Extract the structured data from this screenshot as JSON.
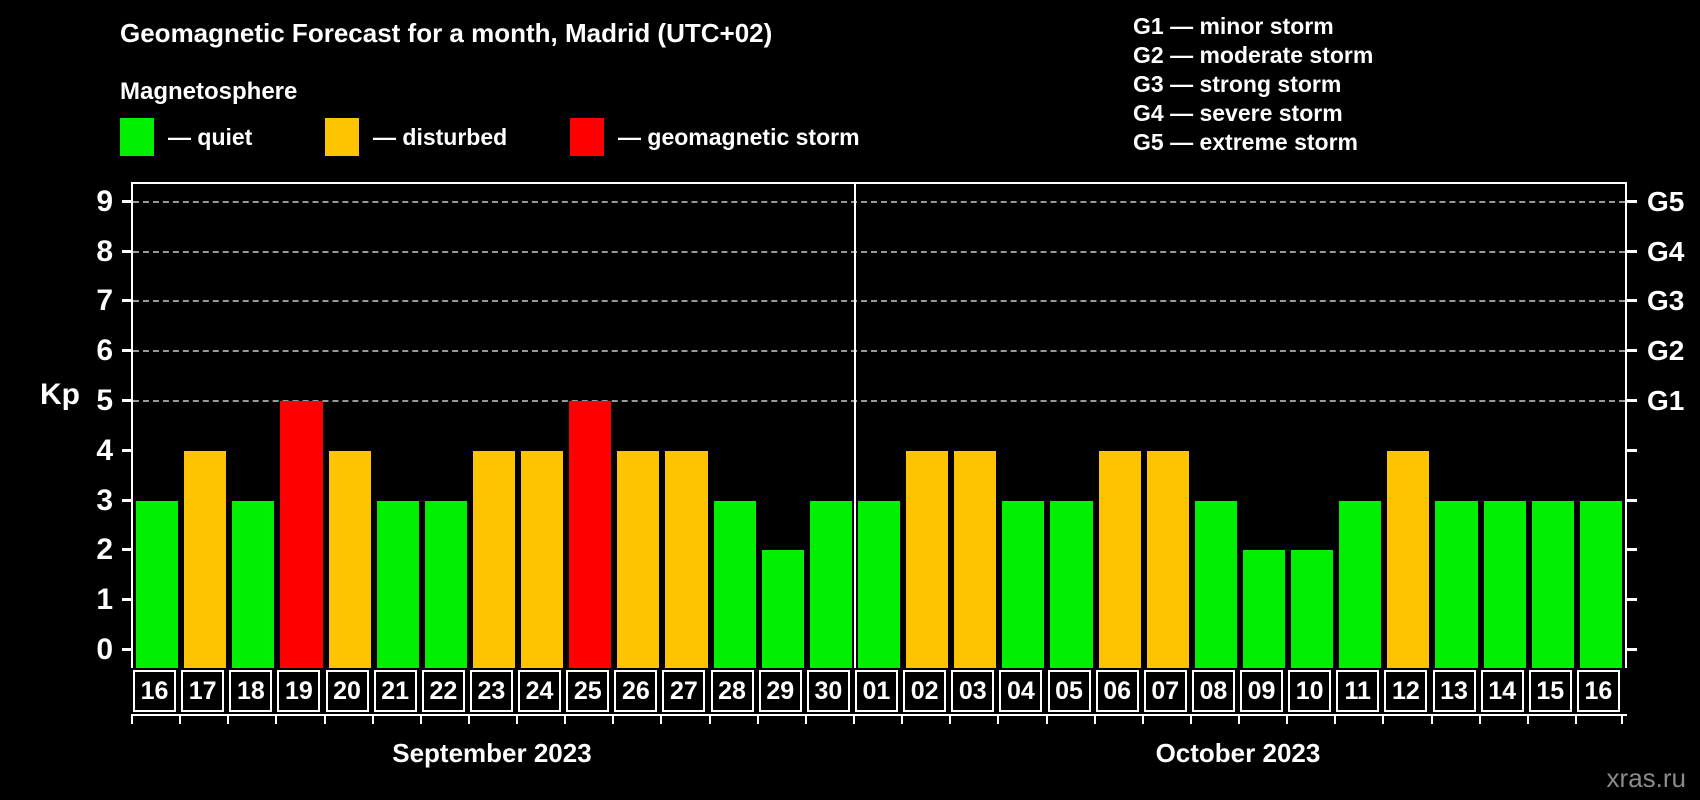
{
  "header": {
    "title": "Geomagnetic Forecast for a month, Madrid (UTC+02)",
    "subtitle": "Magnetosphere"
  },
  "legend": {
    "items": [
      {
        "key": "quiet",
        "label": "— quiet",
        "color": "#00ee00"
      },
      {
        "key": "disturbed",
        "label": "— disturbed",
        "color": "#ffc400"
      },
      {
        "key": "storm",
        "label": "— geomagnetic storm",
        "color": "#ff0000"
      }
    ]
  },
  "g_legend": {
    "items": [
      {
        "label": "G1 — minor storm"
      },
      {
        "label": "G2 — moderate storm"
      },
      {
        "label": "G3 — strong storm"
      },
      {
        "label": "G4 — severe storm"
      },
      {
        "label": "G5 — extreme storm"
      }
    ]
  },
  "watermark": {
    "text": "xras.ru"
  },
  "chart_data": {
    "type": "bar",
    "title": "Geomagnetic Forecast for a month, Madrid (UTC+02)",
    "ylabel": "Kp",
    "ylim": [
      0,
      9
    ],
    "yticks": [
      0,
      1,
      2,
      3,
      4,
      5,
      6,
      7,
      8,
      9
    ],
    "gridlines_at": [
      5,
      6,
      7,
      8,
      9
    ],
    "grid": "dashed horizontal at Kp 5-9 only",
    "legend_position": "top",
    "right_axis": [
      {
        "value": 5,
        "label": "G1"
      },
      {
        "value": 6,
        "label": "G2"
      },
      {
        "value": 7,
        "label": "G3"
      },
      {
        "value": 8,
        "label": "G4"
      },
      {
        "value": 9,
        "label": "G5"
      }
    ],
    "months": [
      {
        "label": "September 2023",
        "days": 15
      },
      {
        "label": "October 2023",
        "days": 16
      }
    ],
    "categories": [
      "16",
      "17",
      "18",
      "19",
      "20",
      "21",
      "22",
      "23",
      "24",
      "25",
      "26",
      "27",
      "28",
      "29",
      "30",
      "01",
      "02",
      "03",
      "04",
      "05",
      "06",
      "07",
      "08",
      "09",
      "10",
      "11",
      "12",
      "13",
      "14",
      "15",
      "16"
    ],
    "values": [
      3,
      4,
      3,
      5,
      4,
      3,
      3,
      4,
      4,
      5,
      4,
      4,
      3,
      2,
      3,
      3,
      4,
      4,
      3,
      3,
      4,
      4,
      3,
      2,
      2,
      3,
      4,
      3,
      3,
      3,
      3
    ],
    "statuses": [
      "quiet",
      "disturbed",
      "quiet",
      "storm",
      "disturbed",
      "quiet",
      "quiet",
      "disturbed",
      "disturbed",
      "storm",
      "disturbed",
      "disturbed",
      "quiet",
      "quiet",
      "quiet",
      "quiet",
      "disturbed",
      "disturbed",
      "quiet",
      "quiet",
      "disturbed",
      "disturbed",
      "quiet",
      "quiet",
      "quiet",
      "quiet",
      "disturbed",
      "quiet",
      "quiet",
      "quiet",
      "quiet"
    ],
    "colors": {
      "quiet": "#00ee00",
      "disturbed": "#ffc400",
      "storm": "#ff0000"
    }
  }
}
